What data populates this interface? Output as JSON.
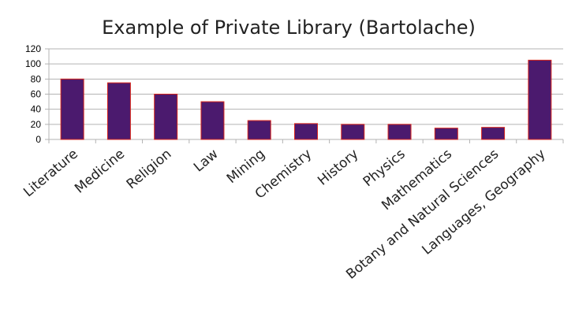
{
  "chart_data": {
    "type": "bar",
    "title": "Example of Private Library (Bartolache)",
    "xlabel": "",
    "ylabel": "",
    "categories": [
      "Literature",
      "Medicine",
      "Religion",
      "Law",
      "Mining",
      "Chemistry",
      "History",
      "Physics",
      "Mathematics",
      "Botany and Natural Sciences",
      "Languages, Geography"
    ],
    "values": [
      80,
      75,
      60,
      50,
      25,
      21,
      20,
      20,
      15,
      16,
      105
    ],
    "ylim": [
      0,
      120
    ],
    "yticks": [
      "0",
      "20",
      "40",
      "60",
      "80",
      "100",
      "120"
    ],
    "grid": true,
    "legend": "none",
    "colors": {
      "bar_fill": "#4b1a6e",
      "bar_stroke": "#d9261c",
      "grid": "#b3b3b3"
    }
  }
}
